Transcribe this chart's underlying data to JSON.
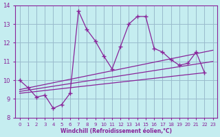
{
  "xlabel": "Windchill (Refroidissement éolien,°C)",
  "xlim": [
    -0.5,
    23.5
  ],
  "ylim": [
    8,
    14
  ],
  "yticks": [
    8,
    9,
    10,
    11,
    12,
    13,
    14
  ],
  "xticks": [
    0,
    1,
    2,
    3,
    4,
    5,
    6,
    7,
    8,
    9,
    10,
    11,
    12,
    13,
    14,
    15,
    16,
    17,
    18,
    19,
    20,
    21,
    22,
    23
  ],
  "bg_color": "#c5edf0",
  "line_color": "#882299",
  "grid_color": "#99bbcc",
  "main_line_x": [
    0,
    1,
    2,
    3,
    4,
    5,
    6,
    7,
    8,
    9,
    10,
    11,
    12,
    13,
    14,
    15,
    16,
    17,
    18,
    19,
    20,
    21,
    22
  ],
  "main_line_y": [
    10.0,
    9.6,
    9.1,
    9.2,
    8.5,
    8.7,
    9.3,
    13.7,
    12.7,
    12.1,
    11.3,
    10.6,
    11.8,
    13.0,
    13.4,
    13.4,
    11.7,
    11.5,
    11.1,
    10.8,
    10.9,
    11.5,
    10.4
  ],
  "trend1_x": [
    0,
    22
  ],
  "trend1_y": [
    9.3,
    10.4
  ],
  "trend2_x": [
    0,
    23
  ],
  "trend2_y": [
    9.4,
    11.0
  ],
  "trend3_x": [
    0,
    23
  ],
  "trend3_y": [
    9.5,
    11.6
  ],
  "figsize": [
    3.2,
    2.0
  ],
  "dpi": 100
}
